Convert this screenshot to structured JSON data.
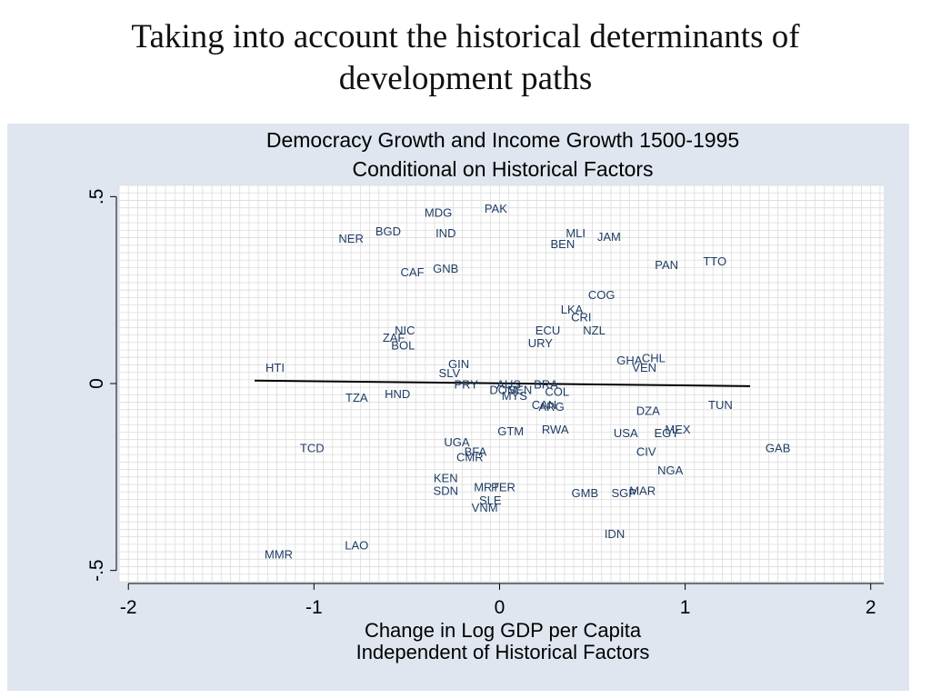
{
  "slide": {
    "title_line1": "Taking into account the historical determinants of",
    "title_line2": "development paths"
  },
  "colors": {
    "panel_bg": "#dfe6ef",
    "plot_bg": "#ffffff",
    "grid": "#dcdcdc",
    "point_label": "#1f3c64",
    "fit_line": "#000000",
    "text": "#000000"
  },
  "chart_data": {
    "type": "scatter",
    "title": "Democracy Growth and Income Growth 1500-1995",
    "subtitle": "Conditional on Historical Factors",
    "xlabel": "Change in Log GDP per Capita",
    "xlabel2": "Independent of Historical Factors",
    "ylabel": "",
    "xlim": [
      -2.05,
      2.07
    ],
    "ylim": [
      -0.53,
      0.53
    ],
    "xticks": [
      -2,
      -1,
      0,
      1,
      2
    ],
    "xtick_labels": [
      "-2",
      "-1",
      "0",
      "1",
      "2"
    ],
    "yticks": [
      -0.5,
      0,
      0.5
    ],
    "ytick_labels": [
      "-.5",
      "0",
      ".5"
    ],
    "grid": true,
    "markers": "text-labels",
    "fit_line": {
      "x": [
        -1.32,
        1.35
      ],
      "y": [
        0.008,
        -0.007
      ]
    },
    "points": [
      {
        "label": "MDG",
        "x": -0.33,
        "y": 0.455
      },
      {
        "label": "PAK",
        "x": -0.02,
        "y": 0.465
      },
      {
        "label": "BGD",
        "x": -0.6,
        "y": 0.405
      },
      {
        "label": "NER",
        "x": -0.8,
        "y": 0.385
      },
      {
        "label": "IND",
        "x": -0.29,
        "y": 0.4
      },
      {
        "label": "MLI",
        "x": 0.41,
        "y": 0.4
      },
      {
        "label": "JAM",
        "x": 0.59,
        "y": 0.39
      },
      {
        "label": "BEN",
        "x": 0.34,
        "y": 0.37
      },
      {
        "label": "GNB",
        "x": -0.29,
        "y": 0.305
      },
      {
        "label": "CAF",
        "x": -0.47,
        "y": 0.295
      },
      {
        "label": "PAN",
        "x": 0.9,
        "y": 0.315
      },
      {
        "label": "TTO",
        "x": 1.16,
        "y": 0.325
      },
      {
        "label": "COG",
        "x": 0.55,
        "y": 0.235
      },
      {
        "label": "LKA",
        "x": 0.39,
        "y": 0.195
      },
      {
        "label": "CRI",
        "x": 0.44,
        "y": 0.175
      },
      {
        "label": "NIC",
        "x": -0.51,
        "y": 0.14
      },
      {
        "label": "ECU",
        "x": 0.26,
        "y": 0.14
      },
      {
        "label": "NZL",
        "x": 0.51,
        "y": 0.14
      },
      {
        "label": "ZAF",
        "x": -0.57,
        "y": 0.12
      },
      {
        "label": "BOL",
        "x": -0.52,
        "y": 0.1
      },
      {
        "label": "URY",
        "x": 0.22,
        "y": 0.105
      },
      {
        "label": "GHA",
        "x": 0.7,
        "y": 0.06
      },
      {
        "label": "CHL",
        "x": 0.83,
        "y": 0.065
      },
      {
        "label": "VEN",
        "x": 0.78,
        "y": 0.04
      },
      {
        "label": "HTI",
        "x": -1.21,
        "y": 0.04
      },
      {
        "label": "GIN",
        "x": -0.22,
        "y": 0.05
      },
      {
        "label": "SLV",
        "x": -0.27,
        "y": 0.025
      },
      {
        "label": "PRY",
        "x": -0.18,
        "y": -0.005
      },
      {
        "label": "AUS",
        "x": 0.05,
        "y": -0.005
      },
      {
        "label": "BRA",
        "x": 0.25,
        "y": -0.005
      },
      {
        "label": "DOM",
        "x": 0.02,
        "y": -0.02
      },
      {
        "label": "SEN",
        "x": 0.11,
        "y": -0.02
      },
      {
        "label": "COL",
        "x": 0.31,
        "y": -0.025
      },
      {
        "label": "MYS",
        "x": 0.08,
        "y": -0.035
      },
      {
        "label": "TZA",
        "x": -0.77,
        "y": -0.04
      },
      {
        "label": "HND",
        "x": -0.55,
        "y": -0.03
      },
      {
        "label": "CAN",
        "x": 0.24,
        "y": -0.06
      },
      {
        "label": "ARG",
        "x": 0.28,
        "y": -0.065
      },
      {
        "label": "DZA",
        "x": 0.8,
        "y": -0.075
      },
      {
        "label": "TUN",
        "x": 1.19,
        "y": -0.06
      },
      {
        "label": "GTM",
        "x": 0.06,
        "y": -0.13
      },
      {
        "label": "RWA",
        "x": 0.3,
        "y": -0.125
      },
      {
        "label": "USA",
        "x": 0.68,
        "y": -0.135
      },
      {
        "label": "EGY",
        "x": 0.9,
        "y": -0.135
      },
      {
        "label": "MEX",
        "x": 0.96,
        "y": -0.125
      },
      {
        "label": "UGA",
        "x": -0.23,
        "y": -0.16
      },
      {
        "label": "BFA",
        "x": -0.13,
        "y": -0.185
      },
      {
        "label": "CMR",
        "x": -0.16,
        "y": -0.2
      },
      {
        "label": "TCD",
        "x": -1.01,
        "y": -0.175
      },
      {
        "label": "CIV",
        "x": 0.79,
        "y": -0.185
      },
      {
        "label": "GAB",
        "x": 1.5,
        "y": -0.175
      },
      {
        "label": "NGA",
        "x": 0.92,
        "y": -0.235
      },
      {
        "label": "KEN",
        "x": -0.29,
        "y": -0.255
      },
      {
        "label": "SDN",
        "x": -0.29,
        "y": -0.29
      },
      {
        "label": "MRT",
        "x": -0.07,
        "y": -0.28
      },
      {
        "label": "PER",
        "x": 0.02,
        "y": -0.28
      },
      {
        "label": "GMB",
        "x": 0.46,
        "y": -0.295
      },
      {
        "label": "SGP",
        "x": 0.67,
        "y": -0.295
      },
      {
        "label": "MAR",
        "x": 0.77,
        "y": -0.29
      },
      {
        "label": "SLE",
        "x": -0.05,
        "y": -0.315
      },
      {
        "label": "VNM",
        "x": -0.08,
        "y": -0.335
      },
      {
        "label": "IDN",
        "x": 0.62,
        "y": -0.405
      },
      {
        "label": "LAO",
        "x": -0.77,
        "y": -0.435
      },
      {
        "label": "MMR",
        "x": -1.19,
        "y": -0.46
      }
    ]
  }
}
